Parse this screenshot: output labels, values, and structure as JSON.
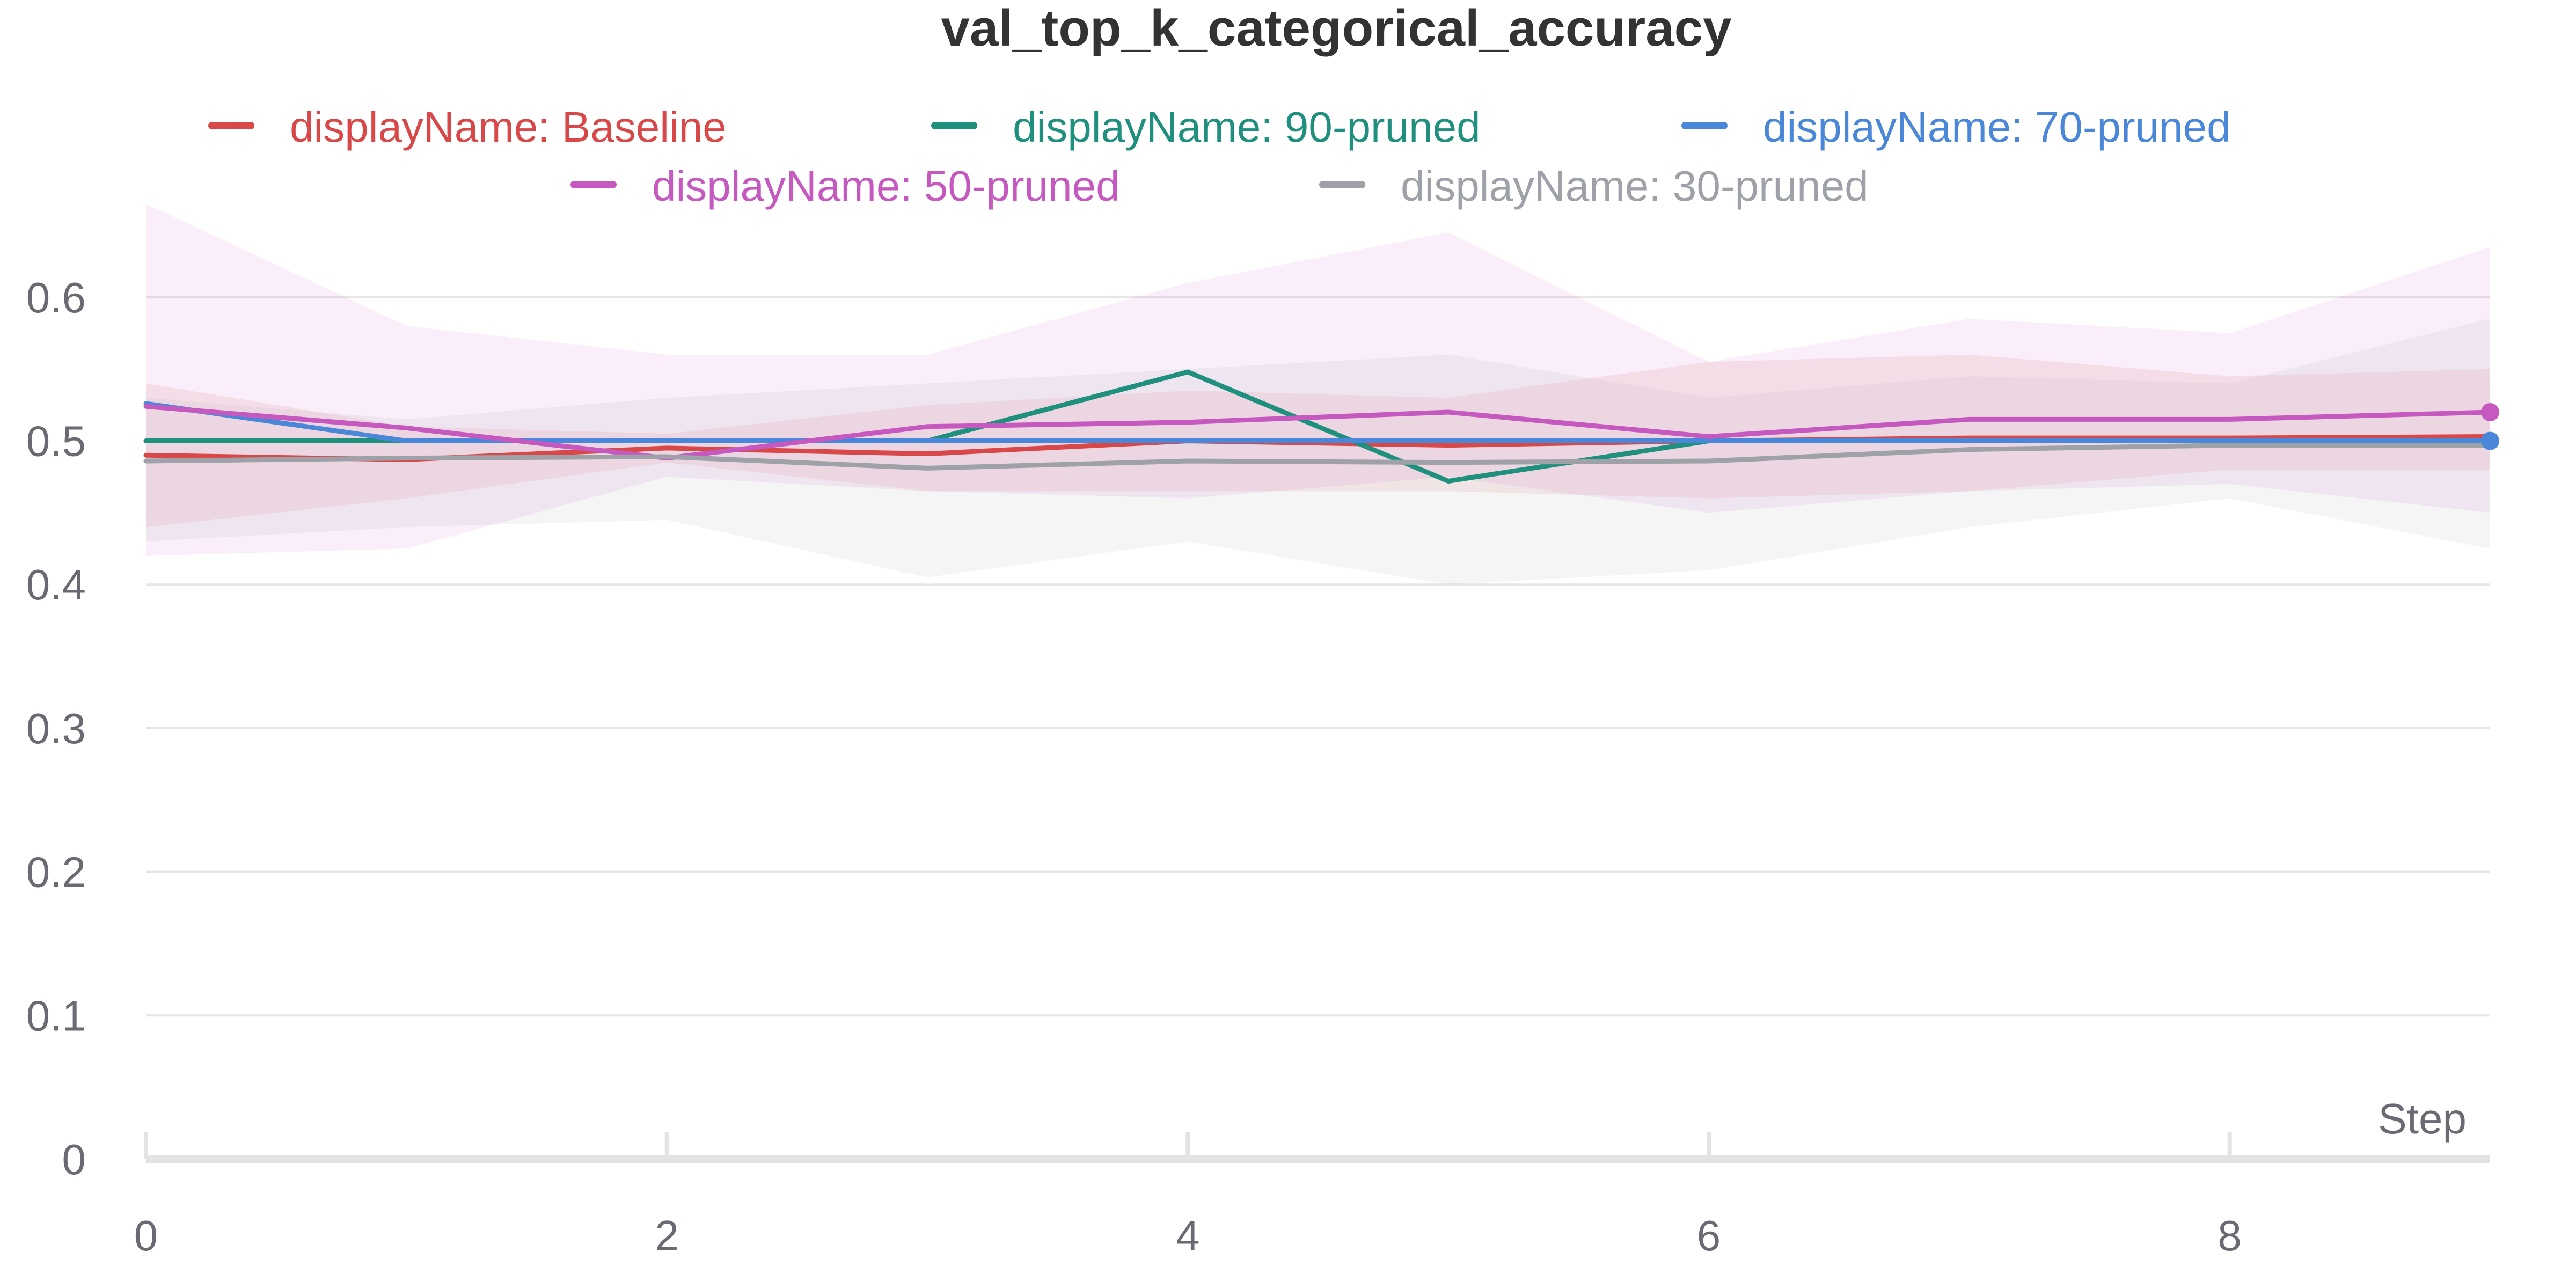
{
  "chart_data": {
    "type": "line",
    "title": "val_top_k_categorical_accuracy",
    "xlabel": "Step",
    "ylabel": "",
    "xlim": [
      0,
      9
    ],
    "ylim": [
      0,
      0.65
    ],
    "x": [
      0,
      1,
      2,
      3,
      4,
      5,
      6,
      7,
      8,
      9
    ],
    "x_ticks": [
      "0",
      "2",
      "4",
      "6",
      "8"
    ],
    "x_tick_values": [
      0,
      2,
      4,
      6,
      8
    ],
    "y_ticks": [
      "0",
      "0.1",
      "0.2",
      "0.3",
      "0.4",
      "0.5",
      "0.6"
    ],
    "y_tick_values": [
      0,
      0.1,
      0.2,
      0.3,
      0.4,
      0.5,
      0.6
    ],
    "grid": true,
    "legend_position": "top",
    "series": [
      {
        "name": "displayName: Baseline",
        "color": "#d94848",
        "values": [
          0.49,
          0.487,
          0.495,
          0.491,
          0.5,
          0.497,
          0.5,
          0.502,
          0.502,
          0.503
        ],
        "band_upper": [
          0.54,
          0.51,
          0.505,
          0.525,
          0.535,
          0.53,
          0.555,
          0.56,
          0.545,
          0.55
        ],
        "band_lower": [
          0.44,
          0.46,
          0.485,
          0.465,
          0.465,
          0.465,
          0.46,
          0.465,
          0.48,
          0.48
        ],
        "end_marker": false
      },
      {
        "name": "displayName: 90-pruned",
        "color": "#1f8f7e",
        "values": [
          0.5,
          0.5,
          0.5,
          0.5,
          0.548,
          0.472,
          0.5,
          0.5,
          0.5,
          0.5
        ],
        "end_marker": false
      },
      {
        "name": "displayName: 70-pruned",
        "color": "#4a87d8",
        "values": [
          0.526,
          0.5,
          0.5,
          0.5,
          0.5,
          0.5,
          0.5,
          0.5,
          0.5,
          0.5
        ],
        "end_marker": true
      },
      {
        "name": "displayName: 50-pruned",
        "color": "#c659c0",
        "values": [
          0.524,
          0.509,
          0.488,
          0.51,
          0.513,
          0.52,
          0.503,
          0.515,
          0.515,
          0.52
        ],
        "band_upper": [
          0.665,
          0.58,
          0.56,
          0.56,
          0.61,
          0.645,
          0.555,
          0.585,
          0.575,
          0.635
        ],
        "band_lower": [
          0.42,
          0.425,
          0.475,
          0.465,
          0.46,
          0.475,
          0.45,
          0.465,
          0.47,
          0.45
        ],
        "end_marker": true
      },
      {
        "name": "displayName: 30-pruned",
        "color": "#9ea1a7",
        "values": [
          0.486,
          0.488,
          0.489,
          0.481,
          0.486,
          0.485,
          0.486,
          0.494,
          0.497,
          0.497
        ],
        "band_upper": [
          0.53,
          0.515,
          0.53,
          0.54,
          0.55,
          0.56,
          0.53,
          0.545,
          0.54,
          0.585
        ],
        "band_lower": [
          0.43,
          0.44,
          0.445,
          0.405,
          0.43,
          0.4,
          0.41,
          0.44,
          0.46,
          0.425
        ],
        "end_marker": false
      }
    ]
  }
}
